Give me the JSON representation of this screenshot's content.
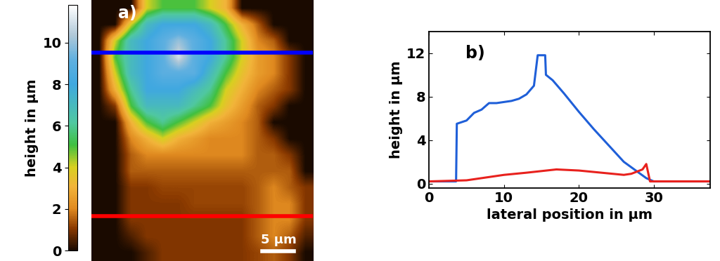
{
  "chart_data": [
    {
      "type": "heatmap",
      "title": "a)",
      "xlim": [
        0,
        35
      ],
      "ylim": [
        41,
        0
      ],
      "tick_labels": false,
      "cells": [
        [
          0,
          0,
          0,
          4,
          5,
          5,
          5,
          4,
          3,
          0,
          0,
          0,
          0,
          0
        ],
        [
          0,
          0,
          4,
          7,
          8,
          8,
          8,
          7,
          5,
          3,
          1.5,
          0,
          0,
          0
        ],
        [
          0,
          4,
          7,
          8,
          9,
          10,
          9,
          8,
          6,
          4,
          2,
          1.5,
          0,
          0
        ],
        [
          0,
          5,
          7,
          8,
          9,
          11,
          9,
          8,
          6,
          4,
          2.5,
          2,
          1,
          0
        ],
        [
          0,
          4,
          7,
          8,
          9,
          9,
          9,
          7,
          5,
          3.5,
          2.5,
          2,
          1,
          0
        ],
        [
          0,
          3,
          6,
          8,
          8,
          8,
          7,
          6,
          4,
          3,
          2,
          1.5,
          1,
          0
        ],
        [
          0,
          1,
          5,
          7,
          7,
          7,
          6,
          5,
          3.5,
          2.5,
          1.5,
          1,
          0,
          0
        ],
        [
          0,
          0,
          3,
          5,
          6,
          5,
          4,
          3,
          2.5,
          2,
          1.5,
          0,
          0,
          0
        ],
        [
          0,
          0,
          2,
          3,
          4,
          3,
          2.5,
          2,
          2,
          2,
          1.5,
          1,
          0,
          0
        ],
        [
          0,
          0,
          1.5,
          2,
          2,
          2,
          2,
          2,
          2,
          2,
          1.5,
          1.5,
          1,
          0
        ],
        [
          0,
          0,
          1.5,
          1.5,
          1.5,
          1.5,
          1.5,
          1.5,
          1.5,
          1.5,
          1.5,
          1.5,
          1.5,
          0
        ],
        [
          0,
          0,
          1,
          1,
          1.2,
          1.2,
          1.2,
          1.2,
          1.2,
          1.2,
          1.5,
          2,
          1.5,
          1
        ],
        [
          0,
          0,
          1,
          1,
          1,
          1,
          1.2,
          1.2,
          1.2,
          1.2,
          1.5,
          2,
          2,
          1
        ],
        [
          0,
          0,
          1,
          1,
          1,
          1,
          1,
          1,
          1,
          1,
          1.5,
          2,
          2,
          1
        ],
        [
          0,
          0,
          0.5,
          1,
          1,
          1,
          1,
          1,
          1,
          1,
          1.5,
          2,
          1.5,
          0.5
        ],
        [
          0,
          0,
          0,
          0.5,
          1,
          1,
          1,
          1,
          1,
          1,
          1.2,
          1.5,
          1,
          0
        ]
      ],
      "colorbar": {
        "label": "height in µm",
        "range": [
          0,
          11.8
        ],
        "ticks": [
          0,
          2,
          4,
          6,
          8,
          10
        ]
      },
      "profiles": [
        {
          "color": "#0000ff",
          "y": 8.3
        },
        {
          "color": "#ff0000",
          "y": 34
        }
      ],
      "scale_bar": {
        "length": 5,
        "label": "5 µm"
      }
    },
    {
      "type": "line",
      "title": "b)",
      "x_label": "lateral position in µm",
      "y_label": "height in µm",
      "xlim": [
        0,
        37.5
      ],
      "ylim": [
        -0.4,
        14
      ],
      "xticks": [
        0,
        10,
        20,
        30
      ],
      "yticks": [
        0,
        4,
        8,
        12
      ],
      "series": [
        {
          "color": "#1f5fd8",
          "x": [
            0,
            3.6,
            3.7,
            5,
            6,
            7,
            8,
            9,
            10,
            11,
            12,
            13,
            14,
            14.5,
            15.5,
            15.6,
            16.5,
            18,
            20,
            22,
            24,
            26,
            28,
            29,
            30,
            37.5
          ],
          "values": [
            0.2,
            0.2,
            5.5,
            5.8,
            6.5,
            6.8,
            7.4,
            7.4,
            7.5,
            7.6,
            7.8,
            8.2,
            9,
            11.8,
            11.8,
            10,
            9.5,
            8.3,
            6.6,
            5,
            3.5,
            2,
            1,
            0.5,
            0.2,
            0.2
          ]
        },
        {
          "color": "#e8211d",
          "x": [
            0,
            5,
            7,
            10,
            13,
            17,
            20,
            23,
            26,
            27,
            28.5,
            29,
            29.5,
            37.5
          ],
          "values": [
            0.2,
            0.3,
            0.5,
            0.8,
            1.0,
            1.3,
            1.2,
            1.0,
            0.8,
            0.9,
            1.3,
            1.8,
            0.2,
            0.2
          ]
        }
      ]
    }
  ]
}
